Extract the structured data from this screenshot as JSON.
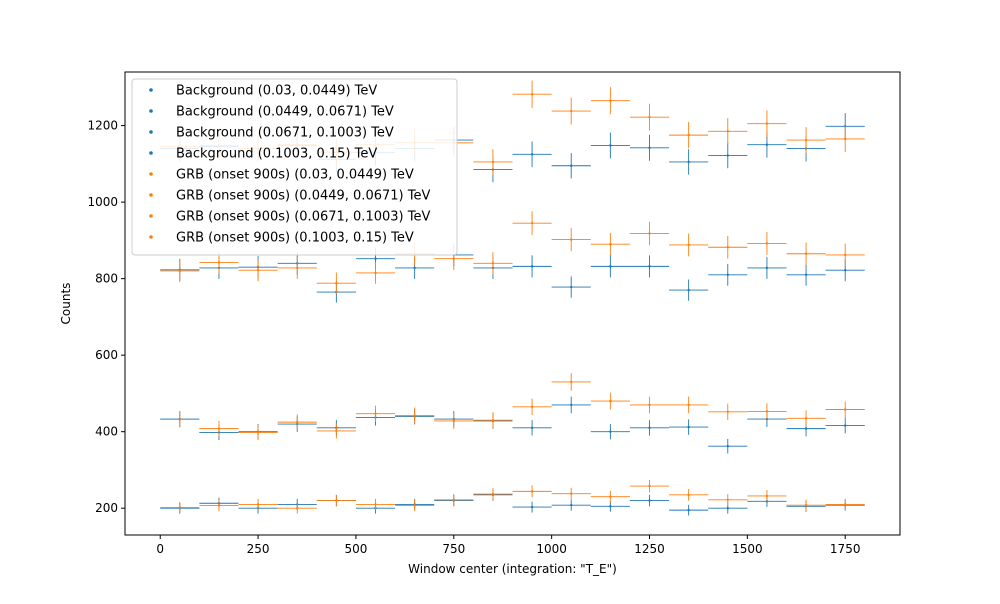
{
  "chart_data": {
    "type": "scatter",
    "xlabel": "Window center (integration: \"T_E\")",
    "ylabel": "Counts",
    "xlim": [
      -90,
      1890
    ],
    "ylim": [
      130,
      1340
    ],
    "x_ticks": [
      0,
      250,
      500,
      750,
      1000,
      1250,
      1500,
      1750
    ],
    "y_ticks": [
      200,
      400,
      600,
      800,
      1000,
      1200
    ],
    "x": [
      50,
      150,
      250,
      350,
      450,
      550,
      650,
      750,
      850,
      950,
      1050,
      1150,
      1250,
      1350,
      1450,
      1550,
      1650,
      1750
    ],
    "x_halfwidth": 50,
    "legend_position": "upper left",
    "grid": false,
    "colors": {
      "background": "#1f77b4",
      "grb": "#ff7f0e"
    },
    "series": [
      {
        "name": "Background (0.03, 0.0449) TeV",
        "group": "background",
        "values": [
          200,
          213,
          200,
          210,
          220,
          200,
          210,
          220,
          235,
          203,
          208,
          205,
          220,
          195,
          200,
          218,
          205,
          208
        ]
      },
      {
        "name": "Background (0.0449, 0.0671) TeV",
        "group": "background",
        "values": [
          433,
          398,
          400,
          420,
          410,
          437,
          440,
          433,
          428,
          410,
          470,
          400,
          410,
          412,
          362,
          433,
          408,
          416
        ]
      },
      {
        "name": "Background (0.0671, 0.1003) TeV",
        "group": "background",
        "values": [
          823,
          828,
          830,
          840,
          765,
          852,
          828,
          862,
          828,
          832,
          778,
          832,
          832,
          770,
          810,
          828,
          810,
          822
        ]
      },
      {
        "name": "Background (0.1003, 0.15) TeV",
        "group": "background",
        "values": [
          1140,
          1145,
          1140,
          1148,
          1112,
          1130,
          1140,
          1162,
          1085,
          1125,
          1095,
          1148,
          1142,
          1105,
          1122,
          1150,
          1140,
          1198
        ]
      },
      {
        "name": "GRB (onset 900s) (0.03, 0.0449) TeV",
        "group": "grb",
        "values": [
          202,
          207,
          210,
          200,
          220,
          210,
          207,
          222,
          237,
          244,
          238,
          230,
          258,
          235,
          222,
          232,
          208,
          210
        ]
      },
      {
        "name": "GRB (onset 900s) (0.0449, 0.0671) TeV",
        "group": "grb",
        "values": [
          432,
          408,
          398,
          425,
          402,
          447,
          442,
          428,
          430,
          465,
          530,
          480,
          470,
          470,
          452,
          453,
          435,
          458
        ]
      },
      {
        "name": "GRB (onset 900s) (0.0671, 0.1003) TeV",
        "group": "grb",
        "values": [
          820,
          842,
          822,
          828,
          788,
          815,
          865,
          852,
          840,
          945,
          902,
          890,
          918,
          888,
          882,
          892,
          865,
          862
        ]
      },
      {
        "name": "GRB (onset 900s) (0.1003, 0.15) TeV",
        "group": "grb",
        "values": [
          1145,
          1148,
          1140,
          1150,
          1130,
          1150,
          1155,
          1155,
          1105,
          1282,
          1238,
          1265,
          1222,
          1175,
          1185,
          1205,
          1162,
          1165
        ]
      }
    ]
  }
}
